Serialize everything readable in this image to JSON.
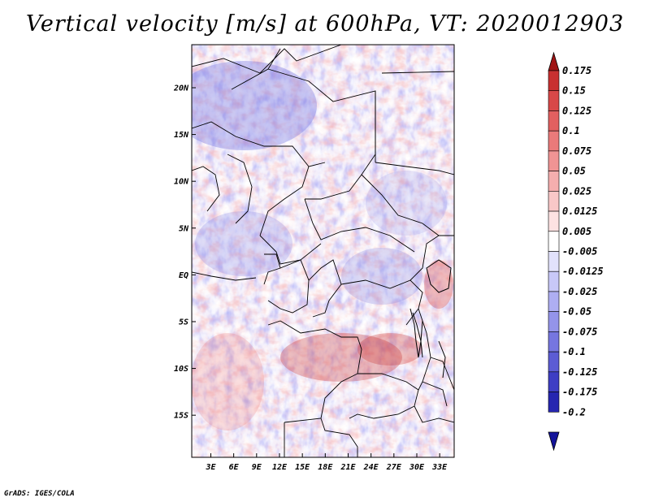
{
  "chart_data": {
    "type": "heatmap",
    "title": "Vertical velocity [m/s] at 600hPa, VT: 2020012903",
    "variable": "Vertical velocity",
    "units": "m/s",
    "level": "600hPa",
    "valid_time": "2020012903",
    "x_ticks": [
      "3E",
      "6E",
      "9E",
      "12E",
      "15E",
      "18E",
      "21E",
      "24E",
      "27E",
      "30E",
      "33E"
    ],
    "x_tick_values": [
      3,
      6,
      9,
      12,
      15,
      18,
      21,
      24,
      27,
      30,
      33
    ],
    "y_ticks": [
      "20N",
      "15N",
      "10N",
      "5N",
      "EQ",
      "5S",
      "10S",
      "15S"
    ],
    "y_tick_values": [
      20,
      15,
      10,
      5,
      0,
      -5,
      -10,
      -15
    ],
    "xlim": [
      0.5,
      34.9
    ],
    "ylim": [
      -19.5,
      24.6
    ],
    "colorbar_levels": [
      "0.175",
      "0.15",
      "0.125",
      "0.1",
      "0.075",
      "0.05",
      "0.025",
      "0.0125",
      "0.005",
      "-0.005",
      "-0.0125",
      "-0.025",
      "-0.05",
      "-0.075",
      "-0.1",
      "-0.125",
      "-0.175",
      "-0.2"
    ],
    "colorbar_colors": [
      "#b01c1c",
      "#c83030",
      "#d84848",
      "#e26060",
      "#ea7a7a",
      "#f09494",
      "#f5aeae",
      "#f9c8c8",
      "#fde2e2",
      "#ffffff",
      "#e2e2fc",
      "#c8c8f8",
      "#aeaef2",
      "#9494ea",
      "#7676e0",
      "#5c5cd4",
      "#3e3ec4",
      "#2626b0",
      "#1a1aa0"
    ],
    "colorbar_arrows": {
      "top": "#a01414",
      "bottom": "#14149a"
    }
  },
  "footer": {
    "credit": "GrADS: IGES/COLA"
  }
}
